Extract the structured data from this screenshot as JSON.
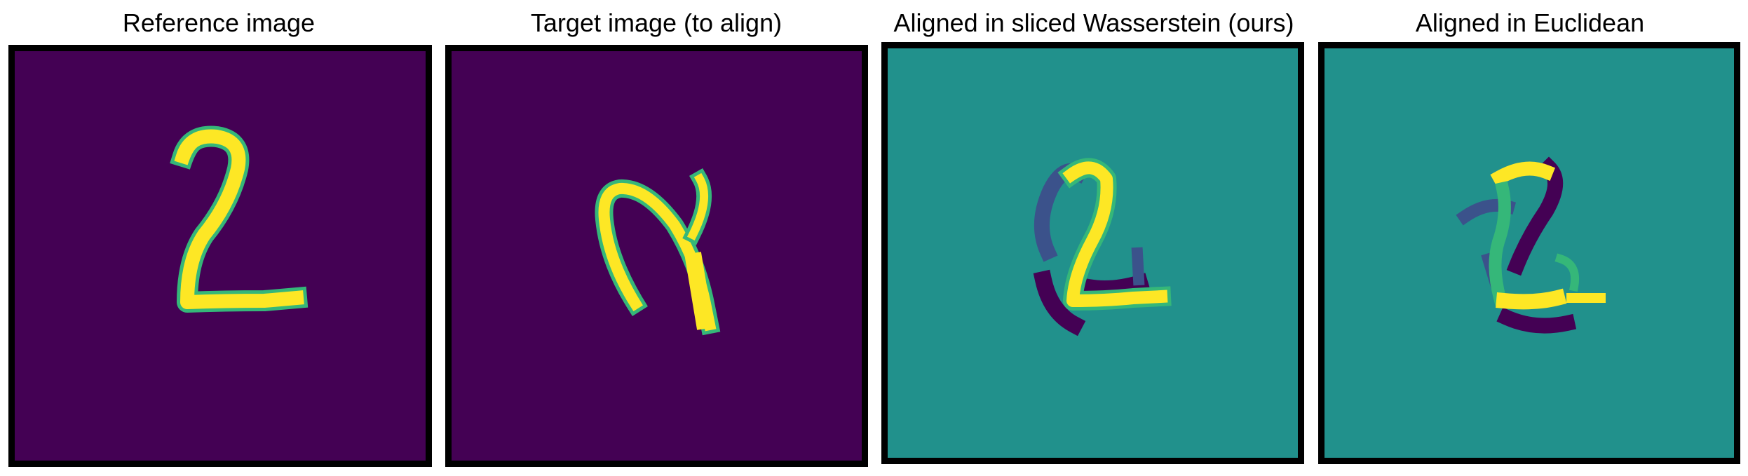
{
  "panels": [
    {
      "title": "Reference image",
      "background": "#440154"
    },
    {
      "title": "Target image (to align)",
      "background": "#440154"
    },
    {
      "title": "Aligned in sliced Wasserstein (ours)",
      "background": "#21918c"
    },
    {
      "title": "Aligned in Euclidean",
      "background": "#21918c"
    }
  ],
  "colormap": {
    "yellow": "#fde725",
    "green": "#35b779",
    "teal": "#21918c",
    "blue": "#31688e",
    "indigo": "#3b528b",
    "purple": "#440154"
  }
}
